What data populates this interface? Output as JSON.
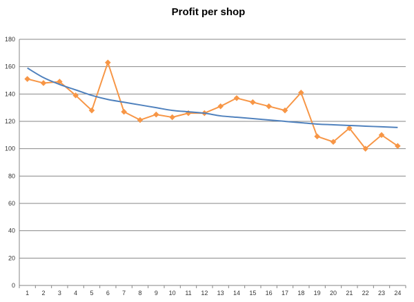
{
  "chart_data": {
    "type": "line",
    "title": "Profit per shop",
    "xlabel": "",
    "ylabel": "",
    "x": [
      1,
      2,
      3,
      4,
      5,
      6,
      7,
      8,
      9,
      10,
      11,
      12,
      13,
      14,
      15,
      16,
      17,
      18,
      19,
      20,
      21,
      22,
      23,
      24
    ],
    "ylim": [
      0,
      180
    ],
    "yticks": [
      0,
      20,
      40,
      60,
      80,
      100,
      120,
      140,
      160,
      180
    ],
    "grid": true,
    "legend": "none",
    "series": [
      {
        "role": "data",
        "color": "#F79646",
        "marker": "diamond",
        "values": [
          151,
          148,
          149,
          139,
          128,
          163,
          127,
          121,
          125,
          123,
          126,
          126,
          131,
          137,
          134,
          131,
          128,
          141,
          109,
          105,
          115,
          100,
          110,
          102
        ]
      },
      {
        "role": "trendline",
        "fit": "logarithmic",
        "color": "#4F81BD",
        "values": [
          159,
          152,
          147,
          143,
          139,
          136,
          134,
          132,
          130,
          128,
          127,
          126,
          124,
          123,
          122,
          121,
          120,
          119,
          118,
          117.5,
          117,
          116.5,
          116,
          115.5
        ]
      }
    ]
  }
}
